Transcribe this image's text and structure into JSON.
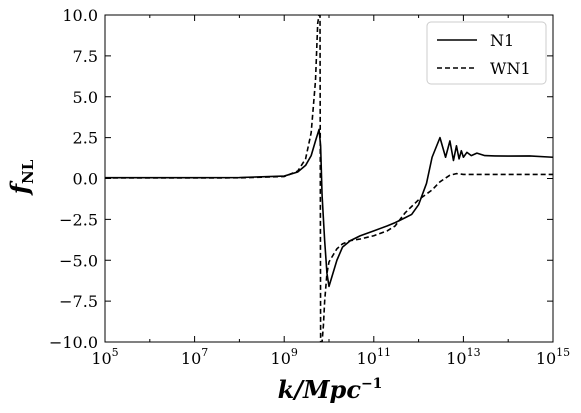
{
  "chart_data": {
    "type": "line",
    "xscale": "log",
    "xlim": [
      100000,
      1000000000000000
    ],
    "ylim": [
      -10,
      10
    ],
    "xlabel": "k/Mpc",
    "xlabel_exp": "−1",
    "ylabel": "f",
    "ylabel_sub": "NL",
    "grid": false,
    "legend_position": "top-right",
    "xticks": [
      {
        "base": "10",
        "exp": "5"
      },
      {
        "base": "10",
        "exp": "7"
      },
      {
        "base": "10",
        "exp": "9"
      },
      {
        "base": "10",
        "exp": "11"
      },
      {
        "base": "10",
        "exp": "13"
      },
      {
        "base": "10",
        "exp": "15"
      }
    ],
    "yticks": [
      "10.0",
      "7.5",
      "5.0",
      "2.5",
      "0.0",
      "−2.5",
      "−5.0",
      "−7.5",
      "−10.0"
    ],
    "series": [
      {
        "name": "N1",
        "style": "solid",
        "color": "#000000",
        "x": [
          100000,
          10000000,
          100000000,
          1000000000,
          2000000000,
          3000000000,
          4000000000,
          5000000000,
          6000000000,
          6500000000,
          7000000000,
          8000000000,
          9000000000,
          10000000000,
          15000000000,
          20000000000,
          30000000000,
          50000000000,
          100000000000,
          200000000000,
          300000000000,
          500000000000,
          700000000000,
          1000000000000,
          1500000000000,
          2000000000000,
          3000000000000,
          4000000000000,
          5000000000000,
          6000000000000,
          7000000000000,
          8000000000000,
          9000000000000,
          10000000000000,
          12000000000000,
          15000000000000,
          20000000000000,
          30000000000000,
          50000000000000,
          100000000000000,
          300000000000000,
          1000000000000000
        ],
        "y": [
          0.05,
          0.05,
          0.06,
          0.15,
          0.4,
          0.8,
          1.4,
          2.3,
          3.0,
          2.0,
          -1.0,
          -3.8,
          -5.8,
          -6.6,
          -5.0,
          -4.2,
          -3.8,
          -3.5,
          -3.2,
          -2.9,
          -2.7,
          -2.4,
          -2.2,
          -1.6,
          -0.3,
          1.3,
          2.5,
          1.3,
          2.3,
          1.1,
          2.0,
          1.2,
          1.7,
          1.3,
          1.6,
          1.4,
          1.55,
          1.4,
          1.38,
          1.37,
          1.38,
          1.3
        ]
      },
      {
        "name": "WN1",
        "style": "dashed",
        "color": "#000000",
        "x": [
          100000,
          10000000,
          100000000,
          1000000000,
          2000000000,
          3000000000,
          4000000000,
          5000000000,
          5600000000,
          6000000000,
          6300000000,
          6500000000,
          6800000000,
          7000000000,
          7500000000,
          8000000000,
          9000000000,
          10000000000,
          15000000000,
          20000000000,
          30000000000,
          50000000000,
          100000000000,
          200000000000,
          300000000000,
          500000000000,
          1000000000000,
          2000000000000,
          3000000000000,
          5000000000000,
          7000000000000,
          10000000000000,
          30000000000000,
          100000000000000,
          1000000000000000
        ],
        "y": [
          0.03,
          0.03,
          0.04,
          0.12,
          0.45,
          1.2,
          2.8,
          6.0,
          9.5,
          10.0,
          10.0,
          -10.0,
          -10.0,
          -10.0,
          -9.0,
          -7.5,
          -5.8,
          -5.1,
          -4.3,
          -4.0,
          -3.8,
          -3.7,
          -3.5,
          -3.2,
          -2.9,
          -2.1,
          -1.3,
          -0.7,
          -0.2,
          0.2,
          0.3,
          0.25,
          0.25,
          0.25,
          0.25
        ]
      }
    ]
  }
}
